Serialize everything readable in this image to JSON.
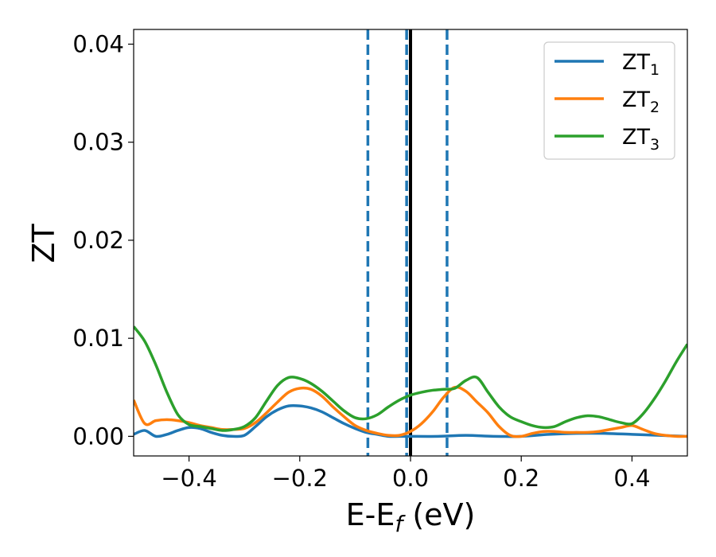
{
  "chart_data": {
    "type": "line",
    "title": "",
    "xlabel": {
      "base": "E-E",
      "sub": "f",
      "unit": " (eV)"
    },
    "ylabel": "ZT",
    "xlim": [
      -0.5,
      0.5
    ],
    "ylim": [
      -0.002,
      0.0415
    ],
    "xticks": [
      {
        "value": -0.4,
        "label": "−0.4"
      },
      {
        "value": -0.2,
        "label": "−0.2"
      },
      {
        "value": 0.0,
        "label": "0.0"
      },
      {
        "value": 0.2,
        "label": "0.2"
      },
      {
        "value": 0.4,
        "label": "0.4"
      }
    ],
    "yticks": [
      {
        "value": 0.0,
        "label": "0.00"
      },
      {
        "value": 0.01,
        "label": "0.01"
      },
      {
        "value": 0.02,
        "label": "0.02"
      },
      {
        "value": 0.03,
        "label": "0.03"
      },
      {
        "value": 0.04,
        "label": "0.04"
      }
    ],
    "grid": false,
    "legend": "top-right",
    "vlines": [
      {
        "x": 0.0,
        "style": "solid",
        "color": "#000000"
      },
      {
        "x": -0.077,
        "style": "dashed",
        "color": "#1f77b4"
      },
      {
        "x": -0.007,
        "style": "dashed",
        "color": "#1f77b4"
      },
      {
        "x": 0.066,
        "style": "dashed",
        "color": "#1f77b4"
      }
    ],
    "series": [
      {
        "name": "ZT",
        "sub": "1",
        "color": "#1f77b4",
        "x": [
          -0.5,
          -0.48,
          -0.46,
          -0.44,
          -0.42,
          -0.4,
          -0.38,
          -0.36,
          -0.34,
          -0.32,
          -0.3,
          -0.28,
          -0.26,
          -0.24,
          -0.22,
          -0.2,
          -0.18,
          -0.16,
          -0.14,
          -0.12,
          -0.1,
          -0.08,
          -0.06,
          -0.04,
          -0.02,
          0.0,
          0.05,
          0.1,
          0.15,
          0.2,
          0.25,
          0.3,
          0.35,
          0.4,
          0.45,
          0.5
        ],
        "y": [
          0.0002,
          0.0006,
          0.0,
          0.0002,
          0.0006,
          0.0009,
          0.0008,
          0.0004,
          0.0001,
          0.0,
          0.0001,
          0.001,
          0.002,
          0.0027,
          0.0031,
          0.0031,
          0.0029,
          0.0025,
          0.0019,
          0.0013,
          0.0008,
          0.0004,
          0.0002,
          0.0,
          0.0,
          0.0,
          0.0,
          0.0001,
          0.0,
          0.0,
          0.0002,
          0.0003,
          0.0003,
          0.0002,
          0.0001,
          0.0
        ]
      },
      {
        "name": "ZT",
        "sub": "2",
        "color": "#ff7f0e",
        "x": [
          -0.5,
          -0.48,
          -0.46,
          -0.44,
          -0.42,
          -0.4,
          -0.38,
          -0.36,
          -0.34,
          -0.32,
          -0.3,
          -0.28,
          -0.26,
          -0.24,
          -0.22,
          -0.2,
          -0.18,
          -0.16,
          -0.14,
          -0.12,
          -0.1,
          -0.08,
          -0.06,
          -0.04,
          -0.02,
          0.0,
          0.02,
          0.04,
          0.06,
          0.08,
          0.1,
          0.12,
          0.14,
          0.16,
          0.18,
          0.2,
          0.22,
          0.24,
          0.26,
          0.28,
          0.3,
          0.32,
          0.34,
          0.36,
          0.38,
          0.4,
          0.42,
          0.44,
          0.46,
          0.48,
          0.5
        ],
        "y": [
          0.0037,
          0.0013,
          0.0016,
          0.0017,
          0.0016,
          0.0014,
          0.0011,
          0.0009,
          0.0007,
          0.0007,
          0.0008,
          0.0014,
          0.0024,
          0.0035,
          0.0045,
          0.0049,
          0.0048,
          0.0041,
          0.003,
          0.002,
          0.0011,
          0.0006,
          0.0003,
          0.0001,
          0.0001,
          0.0005,
          0.0013,
          0.0025,
          0.004,
          0.005,
          0.0046,
          0.0035,
          0.0024,
          0.001,
          0.0001,
          0.0,
          0.0003,
          0.0005,
          0.0005,
          0.0004,
          0.0004,
          0.0004,
          0.0005,
          0.0007,
          0.0009,
          0.0011,
          0.0007,
          0.0003,
          0.0001,
          0.0,
          0.0
        ]
      },
      {
        "name": "ZT",
        "sub": "3",
        "color": "#2ca02c",
        "x": [
          -0.5,
          -0.48,
          -0.46,
          -0.44,
          -0.42,
          -0.4,
          -0.38,
          -0.36,
          -0.34,
          -0.32,
          -0.3,
          -0.28,
          -0.26,
          -0.24,
          -0.22,
          -0.2,
          -0.18,
          -0.16,
          -0.14,
          -0.12,
          -0.1,
          -0.08,
          -0.06,
          -0.04,
          -0.02,
          0.0,
          0.02,
          0.04,
          0.06,
          0.08,
          0.1,
          0.12,
          0.14,
          0.16,
          0.18,
          0.2,
          0.22,
          0.24,
          0.26,
          0.28,
          0.3,
          0.32,
          0.34,
          0.36,
          0.38,
          0.4,
          0.42,
          0.44,
          0.46,
          0.48,
          0.5
        ],
        "y": [
          0.0112,
          0.0097,
          0.0073,
          0.0045,
          0.0022,
          0.0012,
          0.001,
          0.0008,
          0.0006,
          0.0007,
          0.001,
          0.0019,
          0.0036,
          0.0052,
          0.006,
          0.0059,
          0.0054,
          0.0046,
          0.0036,
          0.0026,
          0.0019,
          0.0018,
          0.0022,
          0.003,
          0.0037,
          0.0042,
          0.0045,
          0.0047,
          0.0048,
          0.0049,
          0.0057,
          0.006,
          0.0045,
          0.003,
          0.002,
          0.0015,
          0.0011,
          0.0009,
          0.001,
          0.0015,
          0.0019,
          0.0021,
          0.002,
          0.0017,
          0.0014,
          0.0013,
          0.0023,
          0.0038,
          0.0056,
          0.0076,
          0.0094
        ]
      }
    ]
  }
}
